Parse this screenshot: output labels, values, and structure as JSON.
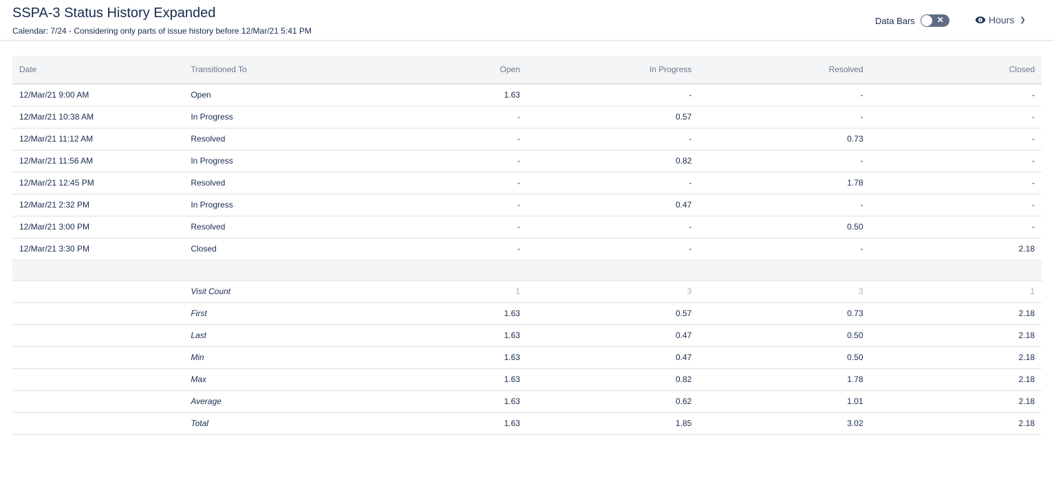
{
  "header": {
    "title": "SSPA-3 Status History Expanded",
    "subtitle": "Calendar: 7/24 - Considering only parts of issue history before 12/Mar/21 5:41 PM",
    "data_bars_label": "Data Bars",
    "data_bars_on": false,
    "unit_label": "Hours"
  },
  "table": {
    "columns": [
      "Date",
      "Transitioned To",
      "Open",
      "In Progress",
      "Resolved",
      "Closed"
    ],
    "rows": [
      [
        "12/Mar/21 9:00 AM",
        "Open",
        "1.63",
        "-",
        "-",
        "-"
      ],
      [
        "12/Mar/21 10:38 AM",
        "In Progress",
        "-",
        "0.57",
        "-",
        "-"
      ],
      [
        "12/Mar/21 11:12 AM",
        "Resolved",
        "-",
        "-",
        "0.73",
        "-"
      ],
      [
        "12/Mar/21 11:56 AM",
        "In Progress",
        "-",
        "0.82",
        "-",
        "-"
      ],
      [
        "12/Mar/21 12:45 PM",
        "Resolved",
        "-",
        "-",
        "1.78",
        "-"
      ],
      [
        "12/Mar/21 2:32 PM",
        "In Progress",
        "-",
        "0.47",
        "-",
        "-"
      ],
      [
        "12/Mar/21 3:00 PM",
        "Resolved",
        "-",
        "-",
        "0.50",
        "-"
      ],
      [
        "12/Mar/21 3:30 PM",
        "Closed",
        "-",
        "-",
        "-",
        "2.18"
      ]
    ],
    "stats": [
      [
        "Visit Count",
        "1",
        "3",
        "3",
        "1"
      ],
      [
        "First",
        "1.63",
        "0.57",
        "0.73",
        "2.18"
      ],
      [
        "Last",
        "1.63",
        "0.47",
        "0.50",
        "2.18"
      ],
      [
        "Min",
        "1.63",
        "0.47",
        "0.50",
        "2.18"
      ],
      [
        "Max",
        "1.63",
        "0.82",
        "1.78",
        "2.18"
      ],
      [
        "Average",
        "1.63",
        "0.62",
        "1.01",
        "2.18"
      ],
      [
        "Total",
        "1.63",
        "1.85",
        "3.02",
        "2.18"
      ]
    ]
  }
}
